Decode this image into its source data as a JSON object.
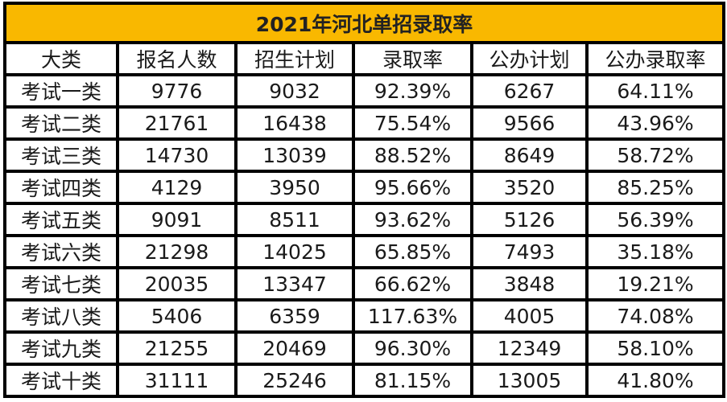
{
  "title": "2021年河北单招录取率",
  "headers": [
    "大类",
    "报名人数",
    "招生计划",
    "录取率",
    "公办计划",
    "公办录取率"
  ],
  "rows": [
    [
      "考试一类",
      "9776",
      "9032",
      "92.39%",
      "6267",
      "64.11%"
    ],
    [
      "考试二类",
      "21761",
      "16438",
      "75.54%",
      "9566",
      "43.96%"
    ],
    [
      "考试三类",
      "14730",
      "13039",
      "88.52%",
      "8649",
      "58.72%"
    ],
    [
      "考试四类",
      "4129",
      "3950",
      "95.66%",
      "3520",
      "85.25%"
    ],
    [
      "考试五类",
      "9091",
      "8511",
      "93.62%",
      "5126",
      "56.39%"
    ],
    [
      "考试六类",
      "21298",
      "14025",
      "65.85%",
      "7493",
      "35.18%"
    ],
    [
      "考试七类",
      "20035",
      "13347",
      "66.62%",
      "3848",
      "19.21%"
    ],
    [
      "考试八类",
      "5406",
      "6359",
      "117.63%",
      "4005",
      "74.08%"
    ],
    [
      "考试九类",
      "21255",
      "20469",
      "96.30%",
      "12349",
      "58.10%"
    ],
    [
      "考试十类",
      "31111",
      "25246",
      "81.15%",
      "13005",
      "41.80%"
    ]
  ],
  "colors": {
    "title_bg": "#f9b800",
    "border": "#000000"
  }
}
